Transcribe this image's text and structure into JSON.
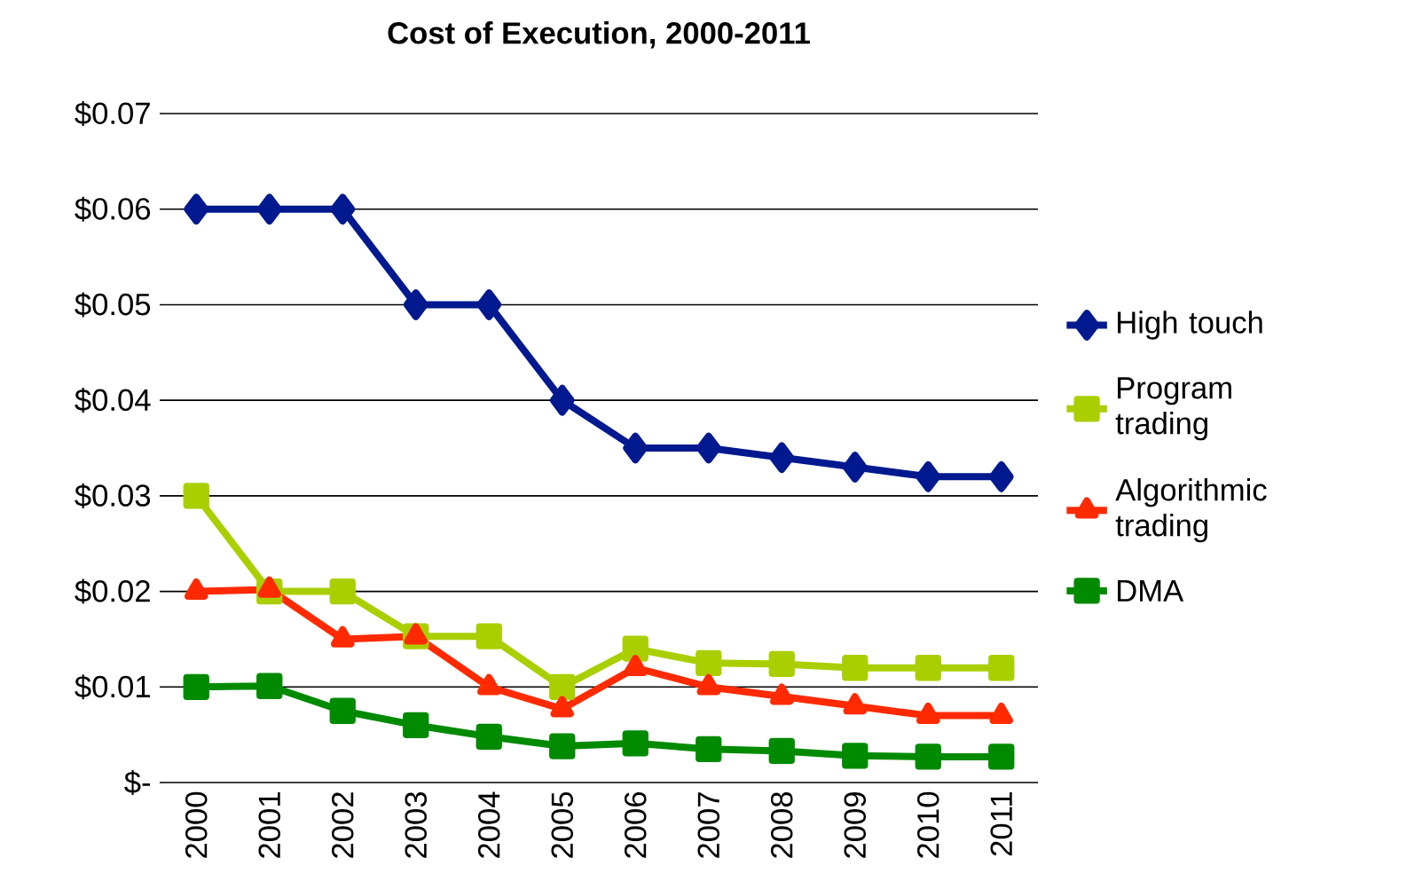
{
  "chart_data": {
    "type": "line",
    "title": "Cost of Execution, 2000-2011",
    "categories": [
      "2000",
      "2001",
      "2002",
      "2003",
      "2004",
      "2005",
      "2006",
      "2007",
      "2008",
      "2009",
      "2010",
      "2011"
    ],
    "series": [
      {
        "name": "High touch",
        "color": "#00198f",
        "marker": "diamond",
        "values": [
          0.06,
          0.06,
          0.06,
          0.05,
          0.05,
          0.04,
          0.035,
          0.035,
          0.034,
          0.033,
          0.032,
          0.032
        ]
      },
      {
        "name": "Program trading",
        "color": "#aacf00",
        "marker": "square",
        "values": [
          0.03,
          0.02,
          0.02,
          0.0153,
          0.0153,
          0.01,
          0.014,
          0.0125,
          0.0124,
          0.012,
          0.012,
          0.012
        ]
      },
      {
        "name": "Algorithmic trading",
        "color": "#ff2a00",
        "marker": "triangle",
        "values": [
          0.02,
          0.0202,
          0.015,
          0.0153,
          0.01,
          0.0077,
          0.012,
          0.01,
          0.009,
          0.008,
          0.007,
          0.007
        ]
      },
      {
        "name": "DMA",
        "color": "#008a00",
        "marker": "square",
        "values": [
          0.01,
          0.0101,
          0.0075,
          0.006,
          0.0048,
          0.0038,
          0.0041,
          0.0035,
          0.0033,
          0.0028,
          0.0027,
          0.0027
        ]
      }
    ],
    "ylim": [
      0,
      0.07
    ],
    "yticks": [
      {
        "value": 0,
        "label": "$-"
      },
      {
        "value": 0.01,
        "label": "$0.01"
      },
      {
        "value": 0.02,
        "label": "$0.02"
      },
      {
        "value": 0.03,
        "label": "$0.03"
      },
      {
        "value": 0.04,
        "label": "$0.04"
      },
      {
        "value": 0.05,
        "label": "$0.05"
      },
      {
        "value": 0.06,
        "label": "$0.06"
      },
      {
        "value": 0.07,
        "label": "$0.07"
      }
    ],
    "grid": "y",
    "legend": "right",
    "line_style": "solid"
  }
}
